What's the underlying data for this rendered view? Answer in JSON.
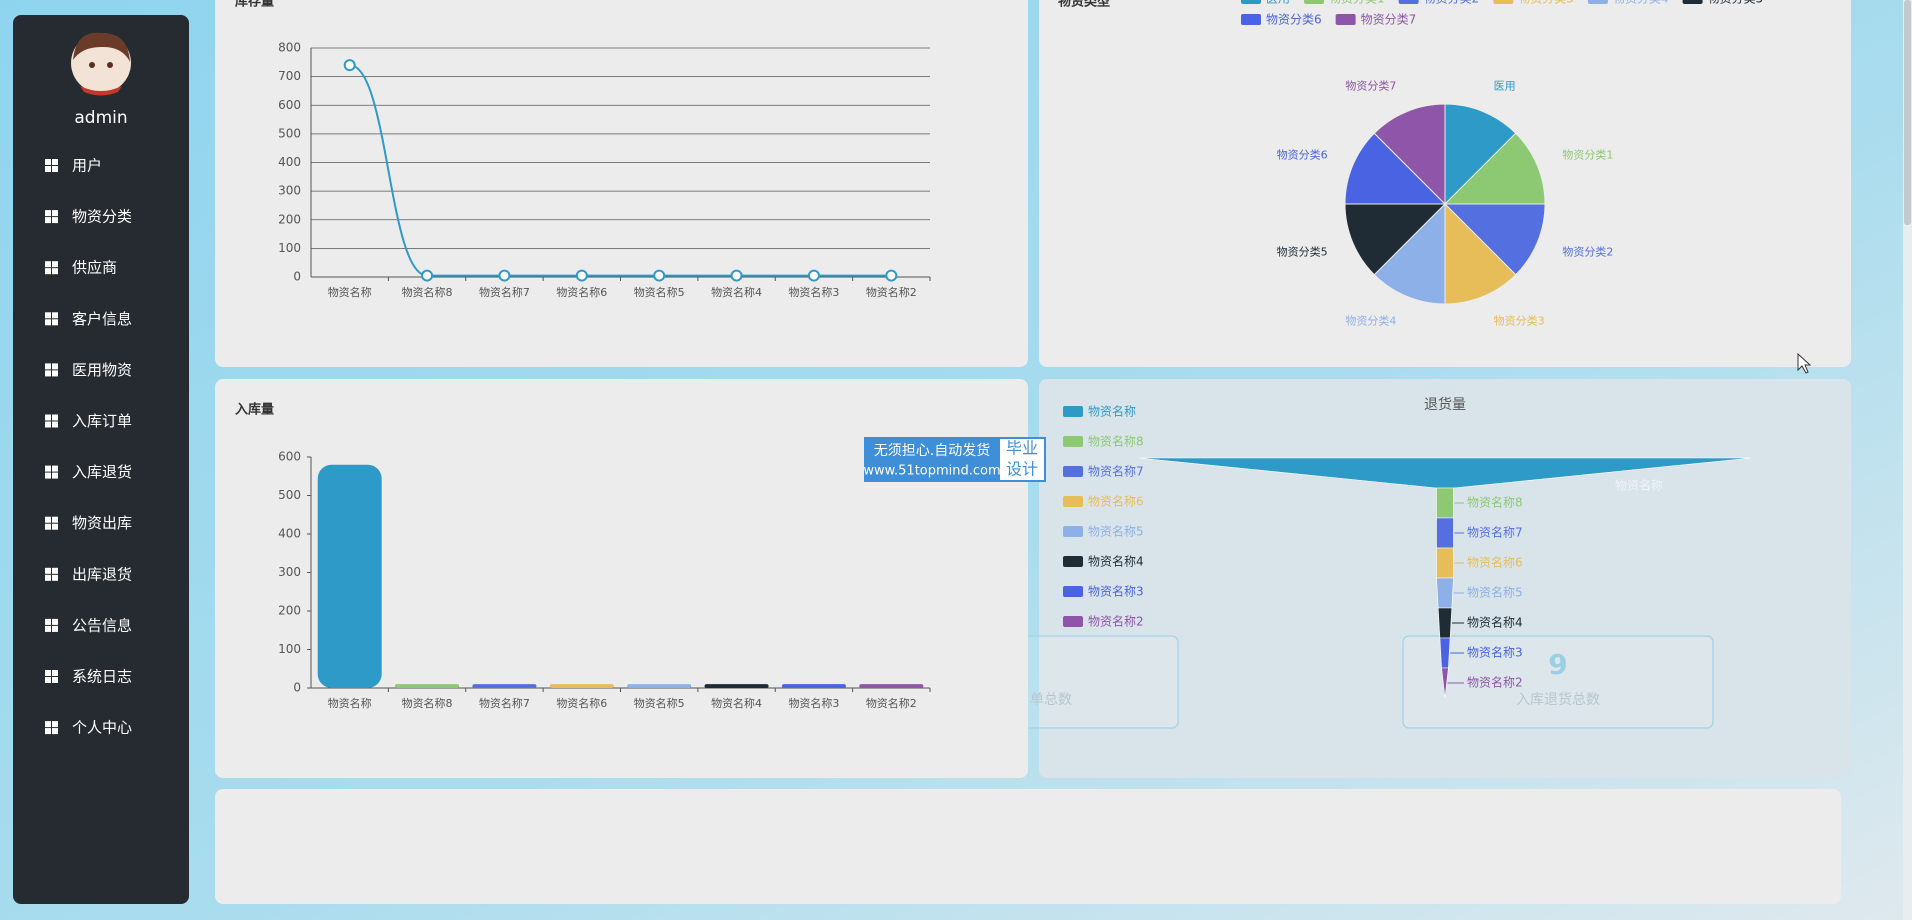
{
  "sidebar": {
    "user": "admin",
    "menu": [
      "用户",
      "物资分类",
      "供应商",
      "客户信息",
      "医用物资",
      "入库订单",
      "入库退货",
      "物资出库",
      "出库退货",
      "公告信息",
      "系统日志",
      "个人中心"
    ]
  },
  "chart_data": [
    {
      "type": "line",
      "title": "库存量",
      "categories": [
        "物资名称",
        "物资名称8",
        "物资名称7",
        "物资名称6",
        "物资名称5",
        "物资名称4",
        "物资名称3",
        "物资名称2"
      ],
      "values": [
        740,
        5,
        5,
        5,
        5,
        5,
        5,
        5
      ],
      "color": "#2e9ac8",
      "ylim": [
        0,
        800
      ],
      "yticks": [
        0,
        100,
        200,
        300,
        400,
        500,
        600,
        700,
        800
      ],
      "grid": true
    },
    {
      "type": "pie",
      "title": "物资类型",
      "categories": [
        "医用",
        "物资分类1",
        "物资分类2",
        "物资分类3",
        "物资分类4",
        "物资分类5",
        "物资分类6",
        "物资分类7"
      ],
      "values": [
        1,
        1,
        1,
        1,
        1,
        1,
        1,
        1
      ],
      "colors": [
        "#2e9ac8",
        "#8dc872",
        "#5470e0",
        "#e6bd58",
        "#8eb0e8",
        "#1f2c36",
        "#4a63e2",
        "#8e55a8"
      ],
      "legend": "top"
    },
    {
      "type": "bar",
      "title": "入库量",
      "categories": [
        "物资名称",
        "物资名称8",
        "物资名称7",
        "物资名称6",
        "物资名称5",
        "物资名称4",
        "物资名称3",
        "物资名称2"
      ],
      "values": [
        580,
        10,
        10,
        10,
        10,
        10,
        10,
        10
      ],
      "colors": [
        "#2e9ac8",
        "#8dc872",
        "#5470e0",
        "#e6bd58",
        "#8eb0e8",
        "#1f2c36",
        "#4a63e2",
        "#8e55a8"
      ],
      "ylim": [
        0,
        600
      ],
      "yticks": [
        0,
        100,
        200,
        300,
        400,
        500,
        600
      ],
      "grid": false
    },
    {
      "type": "funnel",
      "title": "退货量",
      "categories": [
        "物资名称",
        "物资名称8",
        "物资名称7",
        "物资名称6",
        "物资名称5",
        "物资名称4",
        "物资名称3",
        "物资名称2"
      ],
      "values": [
        360,
        10,
        10,
        10,
        10,
        8,
        6,
        4
      ],
      "colors": [
        "#2e9ac8",
        "#8dc872",
        "#5470e0",
        "#e6bd58",
        "#8eb0e8",
        "#1f2c36",
        "#4a63e2",
        "#8e55a8"
      ],
      "legend": "left"
    }
  ],
  "stat_cards": [
    {
      "label": "单总数"
    },
    {
      "value": 9,
      "label": "入库退货总数"
    }
  ],
  "watermark": {
    "line1": "无须担心.自动发货",
    "line2": "www.51topmind.com",
    "badge1": "毕业",
    "badge2": "设计"
  }
}
